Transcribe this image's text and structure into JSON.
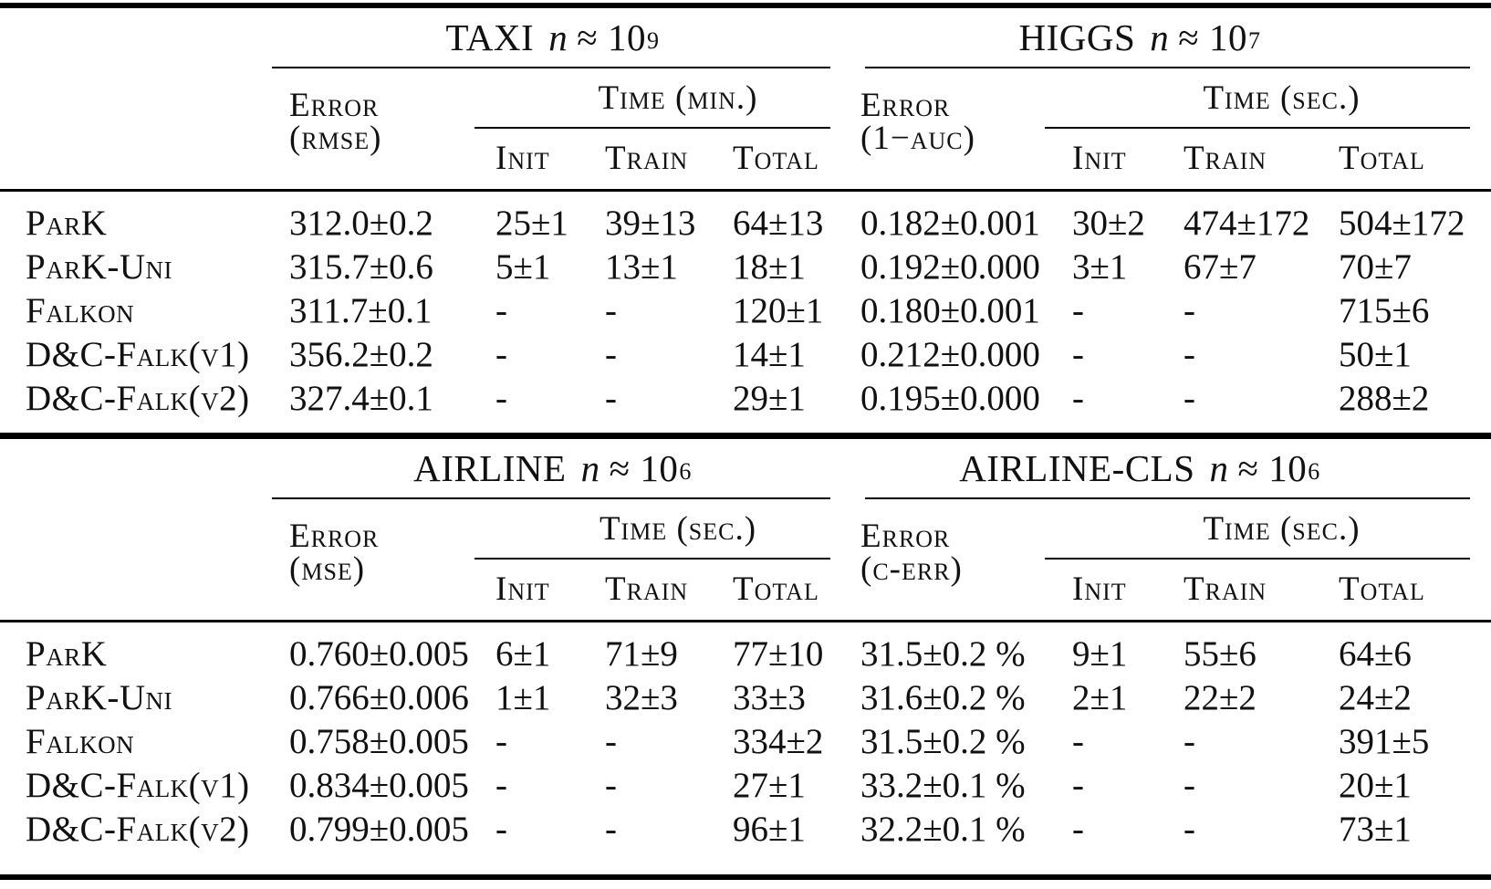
{
  "page": {
    "background": "#ffffff",
    "text_color": "#111111",
    "rule_color": "#000000"
  },
  "tables": [
    {
      "panels": [
        {
          "dataset": "TAXI",
          "n_symbol": "n",
          "approx": "≈ 10",
          "exponent": "9",
          "error_line1": "Error",
          "error_line2": "(rmse)",
          "time_label": "Time (min.)"
        },
        {
          "dataset": "HIGGS",
          "n_symbol": "n",
          "approx": "≈ 10",
          "exponent": "7",
          "error_line1": "Error",
          "error_line2": "(1−auc)",
          "time_label": "Time (sec.)"
        }
      ],
      "time_cols": [
        "Init",
        "Train",
        "Total"
      ],
      "rows": [
        {
          "method": "ParK",
          "cells": [
            "312.0±0.2",
            "25±1",
            "39±13",
            "64±13",
            "0.182±0.001",
            "30±2",
            "474±172",
            "504±172"
          ]
        },
        {
          "method": "ParK-Uni",
          "cells": [
            "315.7±0.6",
            "5±1",
            "13±1",
            "18±1",
            "0.192±0.000",
            "3±1",
            "67±7",
            "70±7"
          ]
        },
        {
          "method": "Falkon",
          "cells": [
            "311.7±0.1",
            "-",
            "-",
            "120±1",
            "0.180±0.001",
            "-",
            "-",
            "715±6"
          ]
        },
        {
          "method": "D&C-Falk(v1)",
          "cells": [
            "356.2±0.2",
            "-",
            "-",
            "14±1",
            "0.212±0.000",
            "-",
            "-",
            "50±1"
          ]
        },
        {
          "method": "D&C-Falk(v2)",
          "cells": [
            "327.4±0.1",
            "-",
            "-",
            "29±1",
            "0.195±0.000",
            "-",
            "-",
            "288±2"
          ]
        }
      ]
    },
    {
      "panels": [
        {
          "dataset": "AIRLINE",
          "n_symbol": "n",
          "approx": "≈ 10",
          "exponent": "6",
          "error_line1": "Error",
          "error_line2": "(mse)",
          "time_label": "Time (sec.)"
        },
        {
          "dataset": "AIRLINE-CLS",
          "n_symbol": "n",
          "approx": "≈ 10",
          "exponent": "6",
          "error_line1": "Error",
          "error_line2": "(c-err)",
          "time_label": "Time (sec.)"
        }
      ],
      "time_cols": [
        "Init",
        "Train",
        "Total"
      ],
      "rows": [
        {
          "method": "ParK",
          "cells": [
            "0.760±0.005",
            "6±1",
            "71±9",
            "77±10",
            "31.5±0.2 %",
            "9±1",
            "55±6",
            "64±6"
          ]
        },
        {
          "method": "ParK-Uni",
          "cells": [
            "0.766±0.006",
            "1±1",
            "32±3",
            "33±3",
            "31.6±0.2 %",
            "2±1",
            "22±2",
            "24±2"
          ]
        },
        {
          "method": "Falkon",
          "cells": [
            "0.758±0.005",
            "-",
            "-",
            "334±2",
            "31.5±0.2 %",
            "-",
            "-",
            "391±5"
          ]
        },
        {
          "method": "D&C-Falk(v1)",
          "cells": [
            "0.834±0.005",
            "-",
            "-",
            "27±1",
            "33.2±0.1 %",
            "-",
            "-",
            "20±1"
          ]
        },
        {
          "method": "D&C-Falk(v2)",
          "cells": [
            "0.799±0.005",
            "-",
            "-",
            "96±1",
            "32.2±0.1 %",
            "-",
            "-",
            "73±1"
          ]
        }
      ]
    }
  ]
}
